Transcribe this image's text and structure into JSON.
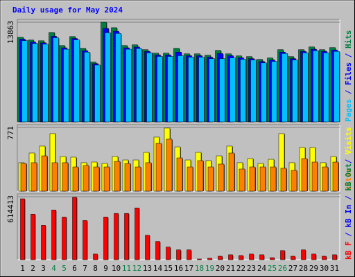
{
  "chart_data": [
    {
      "type": "bar",
      "title": "Daily usage for May 2024",
      "ylim": [
        0,
        13863
      ],
      "yticks": [
        13863
      ],
      "legend": [
        {
          "text": "Pages",
          "color": "#00c0ff"
        },
        {
          "text": "/",
          "color": "#0000ff"
        },
        {
          "text": "Files",
          "color": "#0000ff"
        },
        {
          "text": "/",
          "color": "#0000ff"
        },
        {
          "text": "Hits",
          "color": "#008040"
        }
      ],
      "series": [
        {
          "name": "Hits",
          "color": "#008040",
          "values": [
            11760,
            11380,
            11280,
            12430,
            10610,
            11860,
            10230,
            8320,
            13863,
            13100,
            10610,
            10710,
            10040,
            9560,
            9560,
            10230,
            9460,
            9460,
            9270,
            9940,
            9460,
            9180,
            9080,
            8700,
            8890,
            10040,
            9080,
            10040,
            10420,
            10040,
            10330
          ]
        },
        {
          "name": "Files",
          "color": "#0000ff",
          "values": [
            11500,
            11100,
            11000,
            11900,
            10300,
            11600,
            9900,
            8100,
            13000,
            12600,
            10300,
            10400,
            9800,
            9300,
            9300,
            9700,
            9200,
            9200,
            9000,
            9500,
            9200,
            8900,
            8800,
            8400,
            8600,
            9700,
            8800,
            9800,
            10100,
            9800,
            10000
          ]
        },
        {
          "name": "Pages",
          "color": "#00c0ff",
          "values": [
            11300,
            10900,
            10800,
            11700,
            10100,
            11400,
            9700,
            7900,
            12400,
            12300,
            10100,
            10200,
            9600,
            9100,
            9100,
            9200,
            9000,
            9000,
            8800,
            8800,
            8900,
            8700,
            8600,
            8200,
            8400,
            9500,
            8600,
            9600,
            9900,
            9600,
            9800
          ]
        }
      ]
    },
    {
      "type": "bar",
      "ylim": [
        0,
        771
      ],
      "yticks": [
        771
      ],
      "legend": [
        {
          "text": "Sites",
          "color": "#ff8000"
        },
        {
          "text": "/",
          "color": "#0000ff"
        },
        {
          "text": "Visits",
          "color": "#ffff00"
        }
      ],
      "series": [
        {
          "name": "Visits",
          "color": "#ffff00",
          "values": [
            344,
            461,
            545,
            696,
            419,
            411,
            344,
            352,
            335,
            419,
            377,
            377,
            469,
            654,
            763,
            536,
            377,
            469,
            369,
            427,
            545,
            344,
            394,
            335,
            385,
            696,
            344,
            528,
            528,
            344,
            419
          ]
        },
        {
          "name": "Sites",
          "color": "#ff8000",
          "values": [
            335,
            344,
            427,
            344,
            344,
            293,
            310,
            293,
            293,
            360,
            335,
            293,
            344,
            578,
            629,
            402,
            293,
            369,
            293,
            327,
            461,
            268,
            293,
            293,
            293,
            277,
            251,
            394,
            352,
            293,
            352
          ]
        }
      ]
    },
    {
      "type": "bar",
      "ylim": [
        0,
        614413
      ],
      "yticks": [
        614413
      ],
      "legend": [
        {
          "text": "kB F",
          "color": "#ff0000"
        },
        {
          "text": "/",
          "color": "#0000ff"
        },
        {
          "text": "kB In",
          "color": "#0000ff"
        },
        {
          "text": "/",
          "color": "#0000ff"
        },
        {
          "text": "kB Out",
          "color": "#008040"
        }
      ],
      "categories": [
        "1",
        "2",
        "3",
        "4",
        "5",
        "6",
        "7",
        "8",
        "9",
        "10",
        "11",
        "12",
        "13",
        "14",
        "15",
        "16",
        "17",
        "18",
        "19",
        "20",
        "21",
        "22",
        "23",
        "24",
        "25",
        "26",
        "27",
        "28",
        "29",
        "30",
        "31"
      ],
      "category_colors": [
        "#000000",
        "#000000",
        "#000000",
        "#008040",
        "#008040",
        "#000000",
        "#000000",
        "#000000",
        "#000000",
        "#000000",
        "#008040",
        "#008040",
        "#000000",
        "#000000",
        "#000000",
        "#000000",
        "#000000",
        "#008040",
        "#008040",
        "#000000",
        "#000000",
        "#000000",
        "#000000",
        "#000000",
        "#008040",
        "#008040",
        "#000000",
        "#000000",
        "#000000",
        "#000000",
        "#000000"
      ],
      "series": [
        {
          "name": "kB F",
          "color": "#ff0000",
          "values": [
            594000,
            444000,
            335000,
            485000,
            416000,
            608000,
            382000,
            55000,
            416000,
            451000,
            451000,
            505000,
            239000,
            178000,
            123000,
            96000,
            96000,
            7000,
            14000,
            34000,
            48000,
            41000,
            55000,
            48000,
            20000,
            89000,
            34000,
            96000,
            55000,
            34000,
            48000
          ]
        }
      ]
    }
  ]
}
